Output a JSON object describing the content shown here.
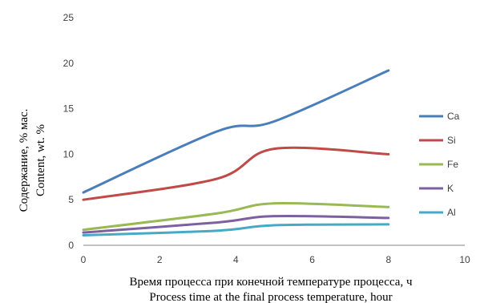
{
  "chart_data": {
    "type": "line",
    "title": "",
    "xlabel": [
      "Время процесса при конечной температуре процесса, ч",
      "Process time at the final process temperature, hour"
    ],
    "ylabel": [
      "Содержание, % мас.",
      "Content, wt. %"
    ],
    "xlim": [
      0,
      10
    ],
    "ylim": [
      0,
      25
    ],
    "x_ticks": [
      0,
      2,
      4,
      6,
      8,
      10
    ],
    "y_ticks": [
      0,
      5,
      10,
      15,
      20,
      25
    ],
    "grid": false,
    "legend_position": "right",
    "x": [
      0,
      3.5,
      5,
      8
    ],
    "series": [
      {
        "name": "Ca",
        "color": "#4a7ebb",
        "values": [
          5.8,
          12.5,
          13.6,
          19.2
        ]
      },
      {
        "name": "Si",
        "color": "#be4b48",
        "values": [
          5.0,
          7.3,
          10.6,
          10.0
        ]
      },
      {
        "name": "Fe",
        "color": "#98b954",
        "values": [
          1.7,
          3.5,
          4.6,
          4.2
        ]
      },
      {
        "name": "K",
        "color": "#7d60a0",
        "values": [
          1.4,
          2.5,
          3.2,
          3.0
        ]
      },
      {
        "name": "Al",
        "color": "#46aac5",
        "values": [
          1.1,
          1.6,
          2.2,
          2.3
        ]
      }
    ]
  }
}
